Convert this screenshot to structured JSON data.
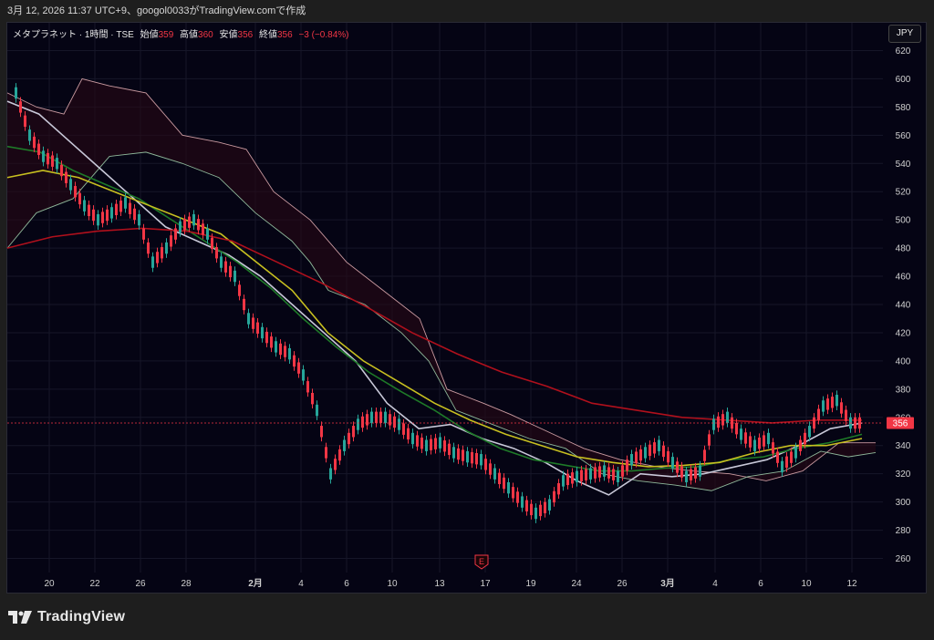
{
  "header": {
    "text": "3月 12, 2026 11:37 UTC+9、googol0033がTradingView.comで作成"
  },
  "legend": {
    "symbol": "メタプラネット · 1時間 · TSE",
    "open_label": "始値",
    "open": "359",
    "high_label": "高値",
    "high": "360",
    "low_label": "安値",
    "low": "356",
    "close_label": "終値",
    "close": "356",
    "change": "−3 (−0.84%)"
  },
  "currency_button": "JPY",
  "last_price_label": "356",
  "earnings_marker": "E",
  "brand": {
    "name": "TradingView"
  },
  "colors": {
    "up": "#26a69a",
    "down": "#f23645",
    "ma_white": "#c8c8d8",
    "ma_green": "#1e7a28",
    "ma_yellow": "#c8c020",
    "ma_red": "#b0101c",
    "cloud_line": "#c99aa0",
    "background": "#050414"
  },
  "chart_data": {
    "type": "line",
    "title": "",
    "xlabel": "",
    "ylabel": "",
    "ylim": [
      250,
      630
    ],
    "y_ticks": [
      620,
      600,
      580,
      560,
      540,
      520,
      500,
      480,
      460,
      440,
      420,
      400,
      380,
      360,
      340,
      320,
      300,
      280,
      260
    ],
    "x_tick_labels": [
      "20",
      "22",
      "26",
      "28",
      "2月",
      "4",
      "6",
      "10",
      "13",
      "17",
      "19",
      "24",
      "26",
      "3月",
      "4",
      "6",
      "10",
      "12"
    ],
    "last_price": 356,
    "candles_close_approx": [
      590,
      560,
      545,
      540,
      525,
      510,
      500,
      505,
      512,
      500,
      470,
      480,
      495,
      500,
      490,
      470,
      460,
      430,
      420,
      410,
      405,
      390,
      365,
      320,
      340,
      355,
      360,
      360,
      355,
      345,
      340,
      342,
      335,
      332,
      330,
      320,
      310,
      300,
      292,
      298,
      315,
      318,
      320,
      322,
      318,
      330,
      335,
      340,
      328,
      318,
      322,
      355,
      360,
      348,
      340,
      345,
      325,
      335,
      350,
      368,
      372,
      356
    ],
    "series": [
      {
        "values": [
          584,
          575,
          555,
          535,
          515,
          495,
          485,
          475,
          460,
          440,
          420,
          400,
          370,
          352,
          355,
          345,
          338,
          328,
          315,
          305,
          320,
          318,
          320,
          325,
          330,
          340,
          352,
          356
        ]
      },
      {
        "values": [
          552,
          548,
          535,
          525,
          515,
          500,
          485,
          470,
          452,
          430,
          410,
          392,
          378,
          365,
          350,
          338,
          330,
          326,
          322,
          322,
          324,
          325,
          330,
          332,
          338,
          342,
          348
        ]
      },
      {
        "values": [
          530,
          535,
          530,
          520,
          510,
          500,
          490,
          470,
          450,
          420,
          400,
          385,
          370,
          358,
          348,
          340,
          332,
          328,
          325,
          326,
          328,
          335,
          340,
          340,
          345
        ]
      },
      {
        "values": [
          480,
          488,
          492,
          494,
          492,
          485,
          470,
          455,
          438,
          420,
          405,
          392,
          382,
          370,
          365,
          360,
          358,
          356,
          358,
          358
        ]
      }
    ]
  }
}
